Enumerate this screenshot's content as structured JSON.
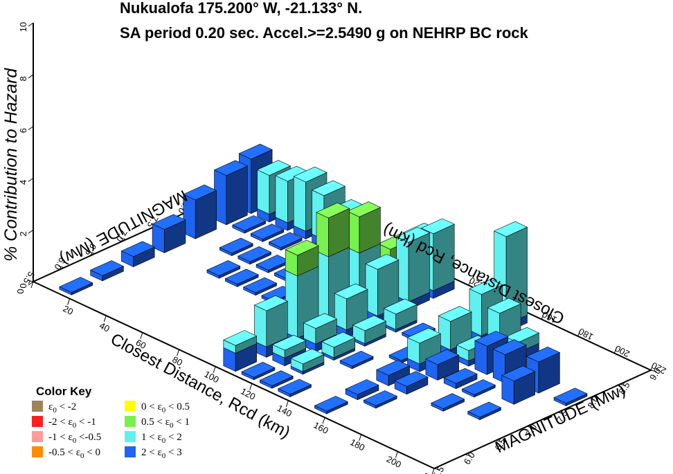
{
  "chart_data": {
    "type": "bar3d",
    "title_line1": "Nukualofa 175.200° W, -21.133° N.",
    "title_line2": "SA period 0.20 sec. Accel.>=2.5490  g on NEHRP BC rock",
    "zlabel": "% Contribution to Hazard",
    "xlabel_front": "Closest Distance, Rcd (km)",
    "xlabel_back": "Closest Distance, Rcd (km)",
    "ylabel_right": "MAGNITUDE (Mw)",
    "ylabel_left": "MAGNITUDE (Mw)",
    "x_ticks": [
      "0",
      "20",
      "40",
      "60",
      "80",
      "100",
      "120",
      "140",
      "160",
      "180",
      "200",
      "220"
    ],
    "x_ticks_back": [
      "0",
      "20",
      "40",
      "60",
      "80",
      "100",
      "120",
      "140",
      "160",
      "180",
      "200",
      "220"
    ],
    "y_ticks_right": [
      "5.5",
      "6.0",
      "6.5",
      "7.0",
      "7.5",
      "8.0",
      "8.5",
      "9.0"
    ],
    "y_ticks_left": [
      "5.5",
      "6.0",
      "6.5",
      "7.0",
      "7.5",
      "8.0",
      "8.5",
      "9.0"
    ],
    "z_ticks": [
      "0",
      "2",
      "4",
      "6",
      "8",
      "10"
    ],
    "xlim": [
      0,
      220
    ],
    "ylim": [
      5.5,
      9.0
    ],
    "zlim": [
      0,
      10
    ],
    "epsilon_colors": {
      "lt_m2": "#a0825a",
      "m2_m1": "#ff2020",
      "m1_m05": "#ff9a9a",
      "m05_0": "#ff8c00",
      "0_05": "#ffff00",
      "05_1": "#78f050",
      "1_2": "#60f0f0",
      "2_3": "#1e64f0"
    },
    "bars": [
      {
        "r": 15,
        "m": 5.75,
        "segs": [
          {
            "e": "2_3",
            "v": 0.1
          }
        ]
      },
      {
        "r": 15,
        "m": 6.25,
        "segs": [
          {
            "e": "2_3",
            "v": 0.2
          }
        ]
      },
      {
        "r": 15,
        "m": 6.75,
        "segs": [
          {
            "e": "2_3",
            "v": 0.4
          }
        ]
      },
      {
        "r": 15,
        "m": 7.25,
        "segs": [
          {
            "e": "2_3",
            "v": 0.9
          }
        ]
      },
      {
        "r": 15,
        "m": 7.75,
        "segs": [
          {
            "e": "2_3",
            "v": 1.5
          }
        ]
      },
      {
        "r": 15,
        "m": 8.25,
        "segs": [
          {
            "e": "2_3",
            "v": 1.9
          }
        ]
      },
      {
        "r": 15,
        "m": 8.65,
        "segs": [
          {
            "e": "2_3",
            "v": 2.1
          }
        ]
      },
      {
        "r": 25,
        "m": 8.65,
        "segs": [
          {
            "e": "2_3",
            "v": 0.3
          },
          {
            "e": "1_2",
            "v": 1.5
          }
        ]
      },
      {
        "r": 35,
        "m": 8.65,
        "segs": [
          {
            "e": "2_3",
            "v": 0.3
          },
          {
            "e": "1_2",
            "v": 1.6
          }
        ]
      },
      {
        "r": 45,
        "m": 8.65,
        "segs": [
          {
            "e": "2_3",
            "v": 0.3
          },
          {
            "e": "1_2",
            "v": 1.9
          }
        ]
      },
      {
        "r": 55,
        "m": 8.65,
        "segs": [
          {
            "e": "2_3",
            "v": 0.3
          },
          {
            "e": "1_2",
            "v": 1.7
          }
        ]
      },
      {
        "r": 65,
        "m": 8.65,
        "segs": [
          {
            "e": "2_3",
            "v": 0.2
          },
          {
            "e": "1_2",
            "v": 1.4
          }
        ]
      },
      {
        "r": 25,
        "m": 8.25,
        "segs": [
          {
            "e": "2_3",
            "v": 0.1
          }
        ]
      },
      {
        "r": 35,
        "m": 8.25,
        "segs": [
          {
            "e": "2_3",
            "v": 0.1
          }
        ]
      },
      {
        "r": 45,
        "m": 8.25,
        "segs": [
          {
            "e": "2_3",
            "v": 0.1
          }
        ]
      },
      {
        "r": 55,
        "m": 8.25,
        "segs": [
          {
            "e": "2_3",
            "v": 0.1
          }
        ]
      },
      {
        "r": 65,
        "m": 8.25,
        "segs": [
          {
            "e": "2_3",
            "v": 0.1
          },
          {
            "e": "1_2",
            "v": 0.4
          }
        ]
      },
      {
        "r": 75,
        "m": 8.25,
        "segs": [
          {
            "e": "2_3",
            "v": 0.1
          },
          {
            "e": "1_2",
            "v": 0.4
          }
        ]
      },
      {
        "r": 35,
        "m": 7.75,
        "segs": [
          {
            "e": "2_3",
            "v": 0.1
          }
        ]
      },
      {
        "r": 45,
        "m": 7.75,
        "segs": [
          {
            "e": "2_3",
            "v": 0.1
          }
        ]
      },
      {
        "r": 55,
        "m": 7.75,
        "segs": [
          {
            "e": "2_3",
            "v": 0.1
          }
        ]
      },
      {
        "r": 65,
        "m": 7.75,
        "segs": [
          {
            "e": "2_3",
            "v": 0.1
          }
        ]
      },
      {
        "r": 75,
        "m": 7.75,
        "segs": [
          {
            "e": "2_3",
            "v": 0.1
          }
        ]
      },
      {
        "r": 85,
        "m": 7.75,
        "segs": [
          {
            "e": "2_3",
            "v": 0.1
          }
        ]
      },
      {
        "r": 45,
        "m": 7.25,
        "segs": [
          {
            "e": "2_3",
            "v": 0.1
          }
        ]
      },
      {
        "r": 55,
        "m": 7.25,
        "segs": [
          {
            "e": "2_3",
            "v": 0.1
          }
        ]
      },
      {
        "r": 65,
        "m": 7.25,
        "segs": [
          {
            "e": "2_3",
            "v": 0.1
          }
        ]
      },
      {
        "r": 75,
        "m": 7.25,
        "segs": [
          {
            "e": "2_3",
            "v": 0.1
          }
        ]
      },
      {
        "r": 85,
        "m": 7.25,
        "segs": [
          {
            "e": "2_3",
            "v": 0.1
          }
        ]
      },
      {
        "r": 95,
        "m": 7.25,
        "segs": [
          {
            "e": "2_3",
            "v": 0.1
          }
        ]
      },
      {
        "r": 105,
        "m": 8.65,
        "segs": [
          {
            "e": "2_3",
            "v": 0.2
          },
          {
            "e": "1_2",
            "v": 1.8
          }
        ]
      },
      {
        "r": 105,
        "m": 8.25,
        "segs": [
          {
            "e": "2_3",
            "v": 0.2
          },
          {
            "e": "1_2",
            "v": 0.8
          },
          {
            "e": "05_1",
            "v": 1.0
          }
        ]
      },
      {
        "r": 105,
        "m": 7.75,
        "segs": [
          {
            "e": "2_3",
            "v": 0.2
          },
          {
            "e": "1_2",
            "v": 2.2
          },
          {
            "e": "05_1",
            "v": 1.4
          }
        ]
      },
      {
        "r": 105,
        "m": 7.25,
        "segs": [
          {
            "e": "2_3",
            "v": 0.2
          },
          {
            "e": "1_2",
            "v": 2.6
          },
          {
            "e": "05_1",
            "v": 1.5
          }
        ]
      },
      {
        "r": 105,
        "m": 6.75,
        "segs": [
          {
            "e": "2_3",
            "v": 0.2
          },
          {
            "e": "1_2",
            "v": 2.4
          },
          {
            "e": "05_1",
            "v": 0.8
          }
        ]
      },
      {
        "r": 105,
        "m": 6.25,
        "segs": [
          {
            "e": "2_3",
            "v": 0.4
          },
          {
            "e": "1_2",
            "v": 1.4
          }
        ]
      },
      {
        "r": 105,
        "m": 5.75,
        "segs": [
          {
            "e": "2_3",
            "v": 0.7
          },
          {
            "e": "1_2",
            "v": 0.3
          }
        ]
      },
      {
        "r": 115,
        "m": 8.65,
        "segs": [
          {
            "e": "2_3",
            "v": 0.3
          },
          {
            "e": "1_2",
            "v": 2.2
          }
        ]
      },
      {
        "r": 115,
        "m": 8.25,
        "segs": [
          {
            "e": "2_3",
            "v": 0.3
          },
          {
            "e": "1_2",
            "v": 2.3
          }
        ]
      },
      {
        "r": 115,
        "m": 7.75,
        "segs": [
          {
            "e": "2_3",
            "v": 0.3
          },
          {
            "e": "1_2",
            "v": 1.8
          }
        ]
      },
      {
        "r": 115,
        "m": 7.25,
        "segs": [
          {
            "e": "2_3",
            "v": 0.3
          },
          {
            "e": "1_2",
            "v": 1.2
          }
        ]
      },
      {
        "r": 115,
        "m": 6.75,
        "segs": [
          {
            "e": "2_3",
            "v": 0.3
          },
          {
            "e": "1_2",
            "v": 0.6
          }
        ]
      },
      {
        "r": 115,
        "m": 6.25,
        "segs": [
          {
            "e": "2_3",
            "v": 0.3
          },
          {
            "e": "1_2",
            "v": 0.3
          }
        ]
      },
      {
        "r": 125,
        "m": 7.75,
        "segs": [
          {
            "e": "2_3",
            "v": 0.1
          },
          {
            "e": "1_2",
            "v": 0.6
          }
        ]
      },
      {
        "r": 125,
        "m": 7.25,
        "segs": [
          {
            "e": "2_3",
            "v": 0.1
          },
          {
            "e": "1_2",
            "v": 0.5
          }
        ]
      },
      {
        "r": 125,
        "m": 6.75,
        "segs": [
          {
            "e": "2_3",
            "v": 0.1
          },
          {
            "e": "1_2",
            "v": 0.4
          }
        ]
      },
      {
        "r": 125,
        "m": 6.25,
        "segs": [
          {
            "e": "2_3",
            "v": 0.1
          },
          {
            "e": "1_2",
            "v": 0.3
          }
        ]
      },
      {
        "r": 125,
        "m": 5.75,
        "segs": [
          {
            "e": "2_3",
            "v": 0.1
          }
        ]
      },
      {
        "r": 115,
        "m": 5.75,
        "segs": [
          {
            "e": "2_3",
            "v": 0.1
          }
        ]
      },
      {
        "r": 135,
        "m": 7.75,
        "segs": [
          {
            "e": "2_3",
            "v": 0.1
          }
        ]
      },
      {
        "r": 135,
        "m": 6.75,
        "segs": [
          {
            "e": "2_3",
            "v": 0.1
          }
        ]
      },
      {
        "r": 135,
        "m": 5.75,
        "segs": [
          {
            "e": "2_3",
            "v": 0.1
          }
        ]
      },
      {
        "r": 145,
        "m": 7.25,
        "segs": [
          {
            "e": "2_3",
            "v": 0.1
          }
        ]
      },
      {
        "r": 155,
        "m": 8.65,
        "segs": [
          {
            "e": "2_3",
            "v": 0.3
          },
          {
            "e": "1_2",
            "v": 3.4
          }
        ]
      },
      {
        "r": 155,
        "m": 8.25,
        "segs": [
          {
            "e": "2_3",
            "v": 0.3
          },
          {
            "e": "1_2",
            "v": 1.6
          }
        ]
      },
      {
        "r": 155,
        "m": 7.75,
        "segs": [
          {
            "e": "2_3",
            "v": 0.3
          },
          {
            "e": "1_2",
            "v": 1.1
          }
        ]
      },
      {
        "r": 155,
        "m": 7.25,
        "segs": [
          {
            "e": "2_3",
            "v": 0.3
          },
          {
            "e": "1_2",
            "v": 0.8
          }
        ]
      },
      {
        "r": 155,
        "m": 6.75,
        "segs": [
          {
            "e": "2_3",
            "v": 0.4
          }
        ]
      },
      {
        "r": 155,
        "m": 6.25,
        "segs": [
          {
            "e": "2_3",
            "v": 0.2
          }
        ]
      },
      {
        "r": 155,
        "m": 5.75,
        "segs": [
          {
            "e": "2_3",
            "v": 0.1
          }
        ]
      },
      {
        "r": 165,
        "m": 8.25,
        "segs": [
          {
            "e": "2_3",
            "v": 0.2
          },
          {
            "e": "1_2",
            "v": 1.3
          }
        ]
      },
      {
        "r": 165,
        "m": 7.75,
        "segs": [
          {
            "e": "2_3",
            "v": 0.2
          },
          {
            "e": "1_2",
            "v": 0.4
          }
        ]
      },
      {
        "r": 165,
        "m": 7.25,
        "segs": [
          {
            "e": "2_3",
            "v": 0.6
          }
        ]
      },
      {
        "r": 165,
        "m": 6.75,
        "segs": [
          {
            "e": "2_3",
            "v": 0.3
          }
        ]
      },
      {
        "r": 165,
        "m": 6.25,
        "segs": [
          {
            "e": "2_3",
            "v": 0.1
          }
        ]
      },
      {
        "r": 175,
        "m": 7.75,
        "segs": [
          {
            "e": "2_3",
            "v": 1.1
          }
        ]
      },
      {
        "r": 175,
        "m": 8.25,
        "segs": [
          {
            "e": "2_3",
            "v": 0.3
          },
          {
            "e": "1_2",
            "v": 0.4
          }
        ]
      },
      {
        "r": 175,
        "m": 7.25,
        "segs": [
          {
            "e": "2_3",
            "v": 0.2
          }
        ]
      },
      {
        "r": 185,
        "m": 7.25,
        "segs": [
          {
            "e": "2_3",
            "v": 0.1
          }
        ]
      },
      {
        "r": 185,
        "m": 6.75,
        "segs": [
          {
            "e": "2_3",
            "v": 0.1
          }
        ]
      },
      {
        "r": 185,
        "m": 7.75,
        "segs": [
          {
            "e": "2_3",
            "v": 1.1
          }
        ]
      },
      {
        "r": 200,
        "m": 6.9,
        "segs": [
          {
            "e": "2_3",
            "v": 0.1
          }
        ]
      },
      {
        "r": 200,
        "m": 7.45,
        "segs": [
          {
            "e": "2_3",
            "v": 0.9
          }
        ]
      },
      {
        "r": 200,
        "m": 7.85,
        "segs": [
          {
            "e": "2_3",
            "v": 1.2
          }
        ]
      },
      {
        "r": 215,
        "m": 7.85,
        "segs": [
          {
            "e": "2_3",
            "v": 0.1
          }
        ]
      }
    ],
    "legend": {
      "title": "Color Key",
      "entries": [
        {
          "key": "lt_m2",
          "pre": "",
          "post": " < -2"
        },
        {
          "key": "m2_m1",
          "pre": "-2 < ",
          "post": " < -1"
        },
        {
          "key": "m1_m05",
          "pre": "-1 < ",
          "post": " <-0.5"
        },
        {
          "key": "m05_0",
          "pre": "-0.5 < ",
          "post": " < 0"
        },
        {
          "key": "0_05",
          "pre": "0 < ",
          "post": " < 0.5"
        },
        {
          "key": "05_1",
          "pre": "0.5 < ",
          "post": " < 1"
        },
        {
          "key": "1_2",
          "pre": "1 < ",
          "post": " < 2"
        },
        {
          "key": "2_3",
          "pre": "2 < ",
          "post": " < 3"
        }
      ],
      "symbol": "ε",
      "subscript": "0"
    }
  }
}
